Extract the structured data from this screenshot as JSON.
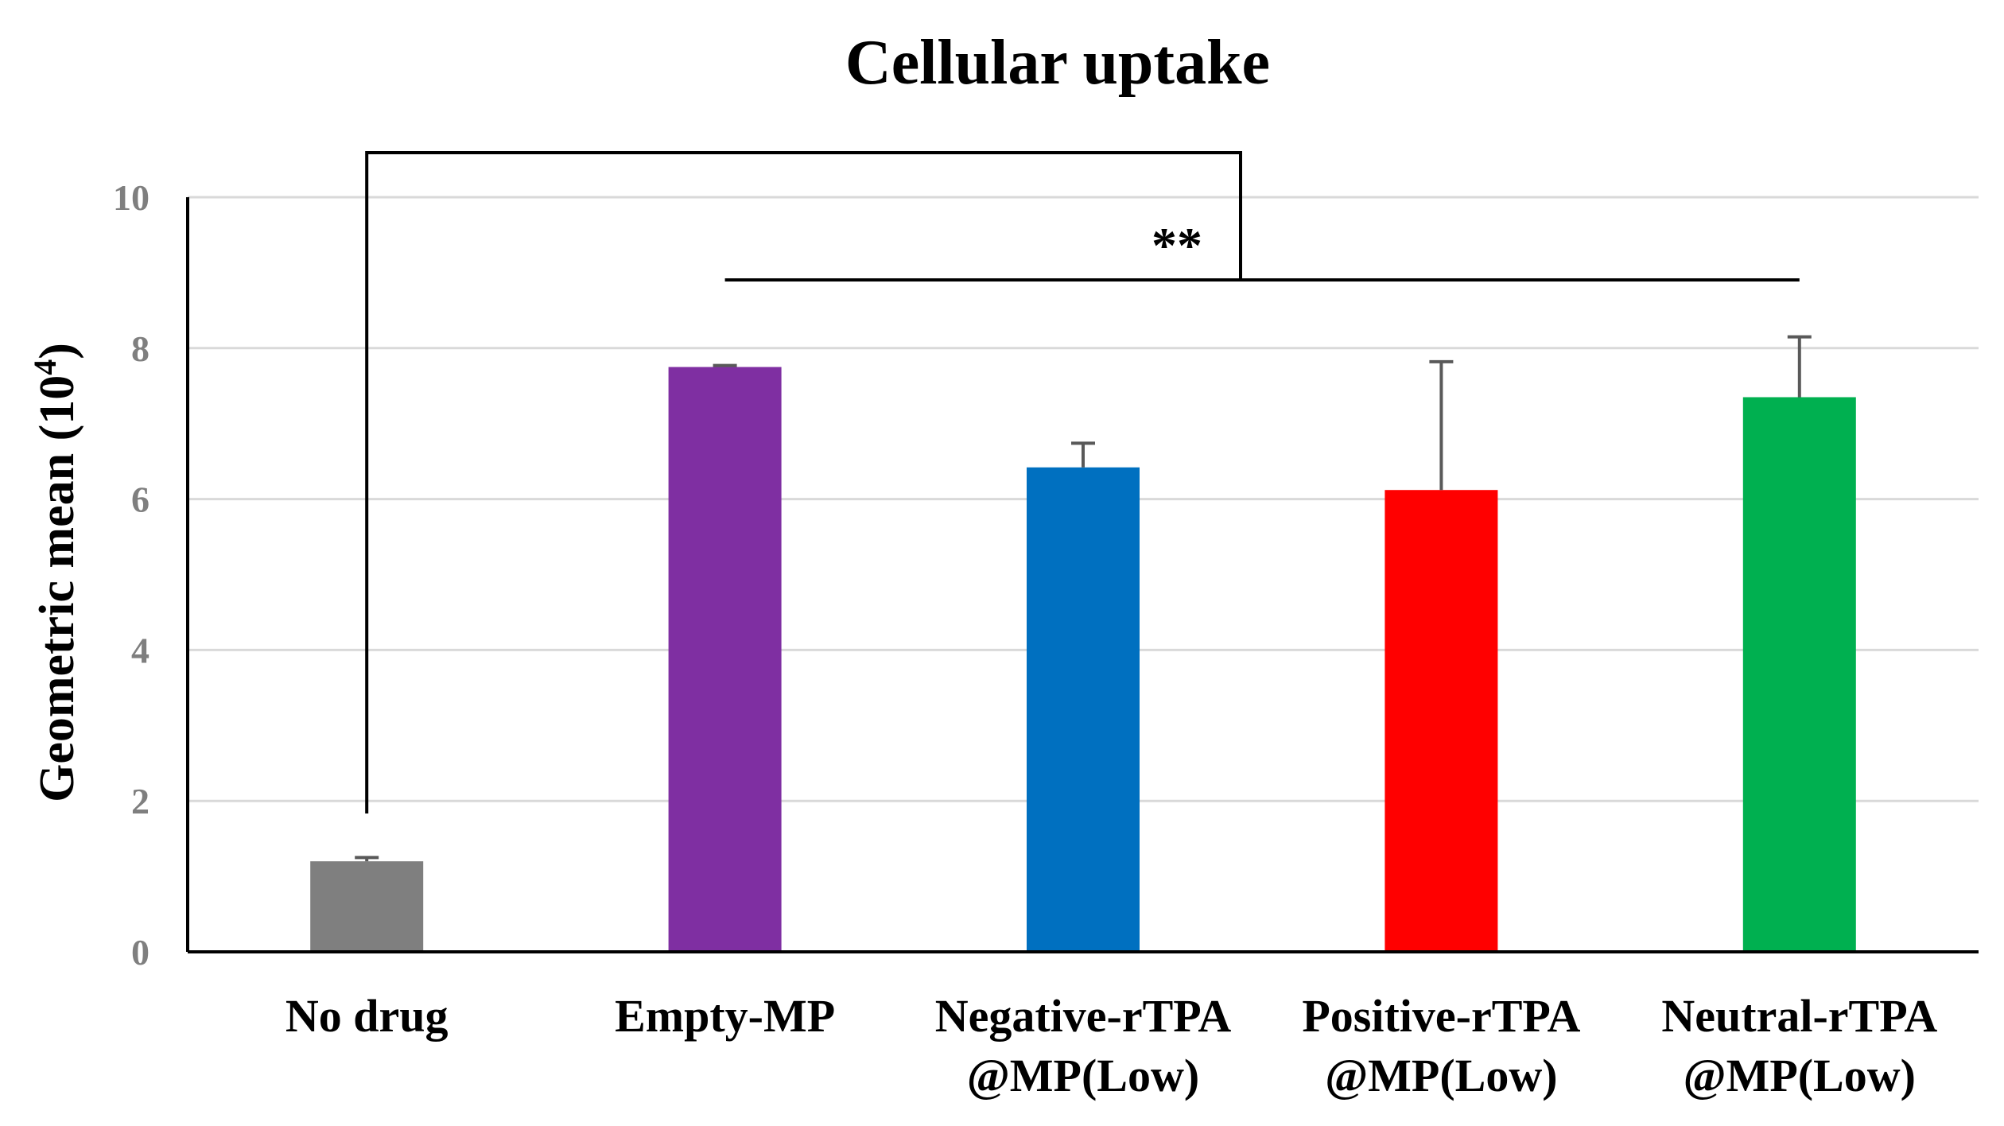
{
  "chart_data": {
    "type": "bar",
    "title": "Cellular uptake",
    "xlabel": "",
    "ylabel": "Geometric mean (10",
    "ylabel_sup": "4",
    "ylabel_end": ")",
    "ylim": [
      0,
      10
    ],
    "yticks": [
      0,
      2,
      4,
      6,
      8,
      10
    ],
    "grid": true,
    "categories": [
      {
        "line1": "No drug",
        "line2": ""
      },
      {
        "line1": "Empty-MP",
        "line2": ""
      },
      {
        "line1": "Negative-rTPA",
        "line2": "@MP(Low)"
      },
      {
        "line1": "Positive-rTPA",
        "line2": "@MP(Low)"
      },
      {
        "line1": "Neutral-rTPA",
        "line2": "@MP(Low)"
      }
    ],
    "values": [
      1.2,
      7.75,
      6.42,
      6.12,
      7.35
    ],
    "errors": [
      0.05,
      0.02,
      0.32,
      1.7,
      0.8
    ],
    "colors": [
      "#7f7f7f",
      "#7f2fa2",
      "#0070c0",
      "#ff0000",
      "#00b050"
    ],
    "significance": {
      "label": "**",
      "comparison": "No drug vs. Empty-MP, Negative-rTPA @MP(Low), Positive-rTPA @MP(Low), Neutral-rTPA @MP(Low)"
    }
  }
}
